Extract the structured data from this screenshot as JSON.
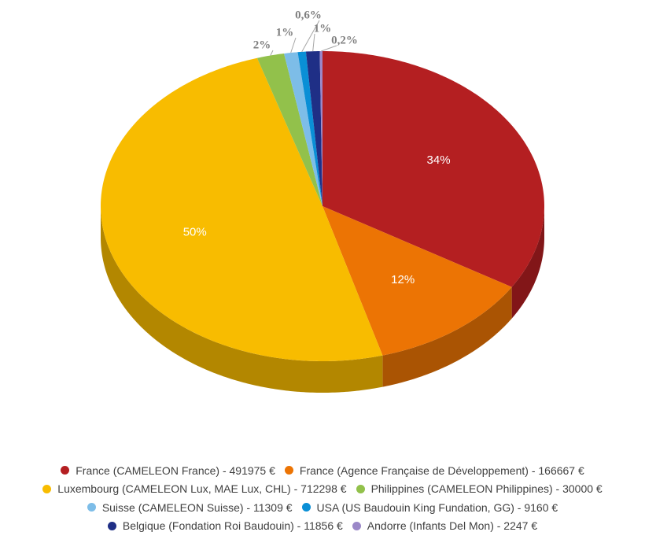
{
  "chart_data": {
    "type": "pie3d",
    "categories": [
      "France (CAMELEON France) - 491975 €",
      "France (Agence Française de Développement) - 166667 €",
      "Luxembourg (CAMELEON Lux, MAE Lux, CHL) - 712298 €",
      "Philippines (CAMELEON Philippines) - 30000 €",
      "Suisse (CAMELEON Suisse) - 11309 €",
      "USA (US Baudouin King Fundation, GG) - 9160 €",
      "Belgique (Fondation Roi Baudouin) - 11856 €",
      "Andorre (Infants Del Mon) - 2247 €"
    ],
    "values": [
      34,
      12,
      50,
      2,
      1,
      0.6,
      1,
      0.2
    ],
    "value_labels": [
      "34%",
      "12%",
      "50%",
      "2%",
      "1%",
      "0,6%",
      "1%",
      "0,2%"
    ],
    "colors": [
      "#b41f21",
      "#ec7404",
      "#f8bc00",
      "#92c14b",
      "#7dbde8",
      "#0a8fd6",
      "#1f2f86",
      "#9b88c8"
    ],
    "legend": "bottom"
  }
}
